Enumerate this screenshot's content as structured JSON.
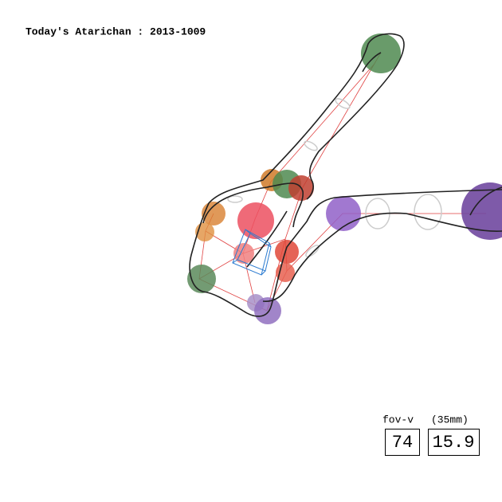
{
  "header": {
    "title": "Today's Atarichan : 2013-1009"
  },
  "fov": {
    "label": "fov-v",
    "unit_label": "(35mm)",
    "fov_value": 74,
    "focal_value": 15.9
  }
}
